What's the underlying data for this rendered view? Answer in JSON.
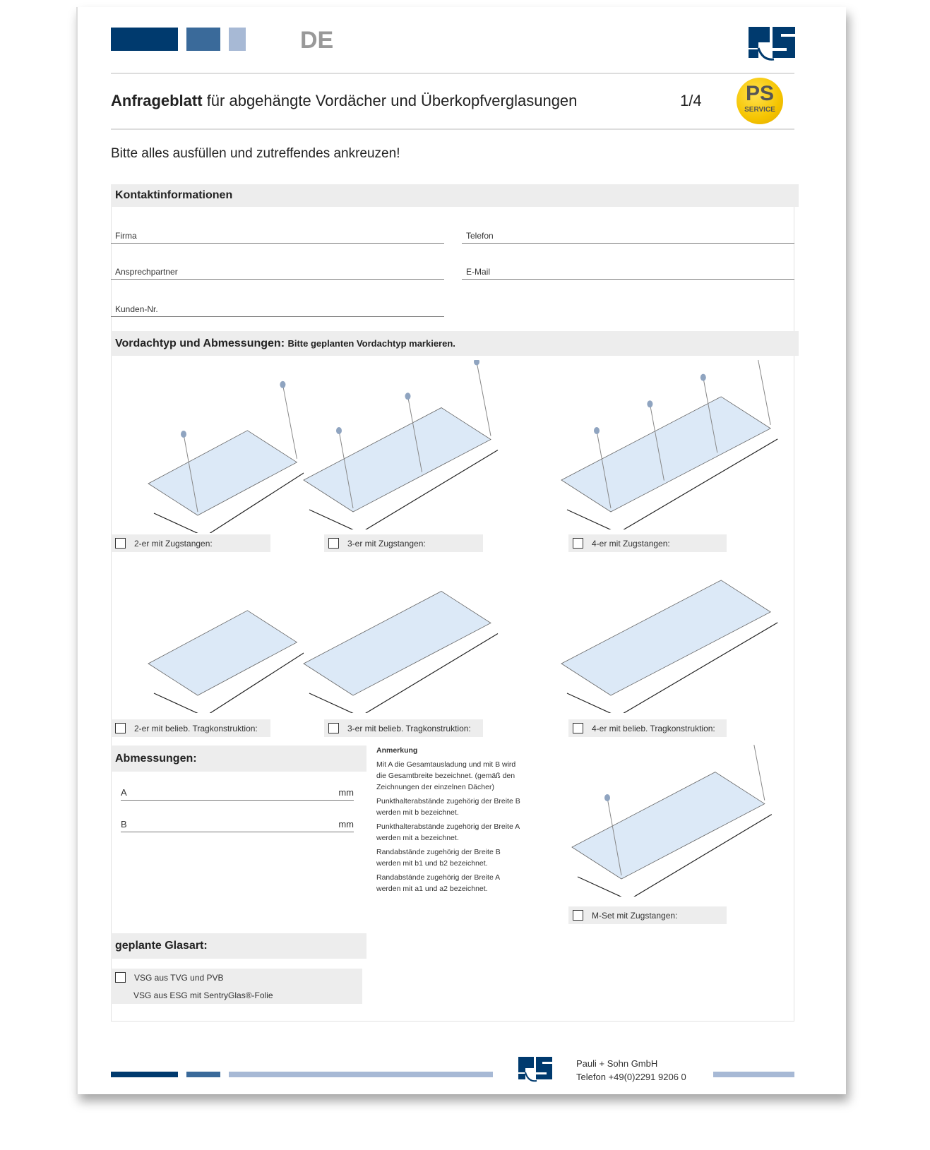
{
  "header": {
    "language": "DE",
    "brand_colors": [
      "#003a6e",
      "#3a6a9a",
      "#a7b9d5"
    ],
    "logo": "PS",
    "badge": {
      "line1": "PS",
      "line2": "SERVICE",
      "color": "#f5c400"
    }
  },
  "title": {
    "bold": "Anfrageblatt",
    "rest": "für abgehängte Vordächer und Überkopfverglasungen",
    "page": "1/4"
  },
  "instruction": "Bitte alles ausfüllen und zutreffendes ankreuzen!",
  "contact": {
    "heading": "Kontaktinformationen",
    "fields": [
      {
        "label": "Firma",
        "value": ""
      },
      {
        "label": "Telefon",
        "value": ""
      },
      {
        "label": "Ansprechpartner",
        "value": ""
      },
      {
        "label": "E-Mail",
        "value": ""
      },
      {
        "label": "Kunden-Nr.",
        "value": ""
      }
    ]
  },
  "canopy": {
    "heading": "Vordachtyp und Abmessungen:",
    "hint": "Bitte geplanten Vordachtyp markieren.",
    "types": [
      {
        "label": "2-er mit Zugstangen:",
        "checked": false
      },
      {
        "label": "3-er mit Zugstangen:",
        "checked": false
      },
      {
        "label": "4-er mit Zugstangen:",
        "checked": false
      },
      {
        "label": "2-er mit belieb. Tragkonstruktion:",
        "checked": false
      },
      {
        "label": "3-er mit belieb. Tragkonstruktion:",
        "checked": false
      },
      {
        "label": "4-er mit belieb. Tragkonstruktion:",
        "checked": false
      },
      {
        "label": "M-Set mit Zugstangen:",
        "checked": false
      }
    ]
  },
  "dimensions": {
    "heading": "Abmessungen:",
    "fields": [
      {
        "label": "A",
        "unit": "mm",
        "value": ""
      },
      {
        "label": "B",
        "unit": "mm",
        "value": ""
      }
    ]
  },
  "note": {
    "heading": "Anmerkung",
    "paragraphs": [
      "Mit A die Gesamtausladung und mit B wird die Gesamtbreite bezeichnet. (gemäß den Zeichnungen der einzelnen Dächer)",
      "Punkthalterabstände zugehörig der Breite B werden mit b bezeichnet.",
      "Punkthalterabstände zugehörig der Breite A werden mit a bezeichnet.",
      "Randabstände zugehörig der Breite B werden mit b1 und b2 bezeichnet.",
      "Randabstände zugehörig der Breite A werden mit a1 und a2 bezeichnet."
    ]
  },
  "glass": {
    "heading": "geplante Glasart:",
    "options": [
      {
        "label": "VSG aus TVG und PVB",
        "checked": false
      },
      {
        "label": "VSG aus ESG mit SentryGlas®-Folie"
      }
    ]
  },
  "footer": {
    "company": "Pauli + Sohn GmbH",
    "phone": "Telefon +49(0)2291 9206 0"
  }
}
